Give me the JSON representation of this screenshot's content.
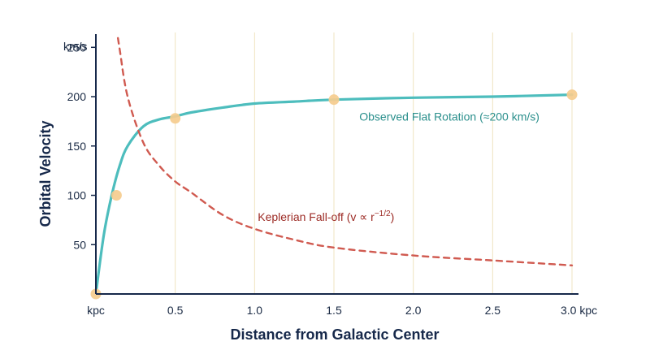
{
  "chart_data": {
    "type": "line",
    "xlabel": "Distance from Galactic Center",
    "ylabel": "Orbital Velocity",
    "xlim": [
      0,
      3.0
    ],
    "ylim": [
      0,
      270
    ],
    "x_ticks": [
      {
        "value": 0,
        "label": "kpc"
      },
      {
        "value": 0.5,
        "label": "0.5"
      },
      {
        "value": 1.0,
        "label": "1.0"
      },
      {
        "value": 1.5,
        "label": "1.5"
      },
      {
        "value": 2.0,
        "label": "2.0"
      },
      {
        "value": 2.5,
        "label": "2.5"
      },
      {
        "value": 3.0,
        "label": "3.0 kpc"
      }
    ],
    "y_ticks": [
      {
        "value": 50,
        "label": "50"
      },
      {
        "value": 100,
        "label": "100"
      },
      {
        "value": 150,
        "label": "150"
      },
      {
        "value": 200,
        "label": "200"
      },
      {
        "value": 250,
        "label": "250"
      }
    ],
    "y_unit_label": "km/s",
    "grid": {
      "vertical": true,
      "horizontal": false
    },
    "series": [
      {
        "name": "Observed Flat Rotation (≈200 km/s)",
        "style": "solid",
        "color": "#4dbdbd",
        "x": [
          0,
          0.05,
          0.1,
          0.15,
          0.2,
          0.3,
          0.4,
          0.5,
          0.6,
          0.8,
          1.0,
          1.25,
          1.5,
          2.0,
          2.5,
          3.0
        ],
        "y": [
          0,
          60,
          100,
          130,
          150,
          170,
          177,
          180,
          184,
          189,
          193,
          195,
          197,
          199,
          200,
          202
        ]
      },
      {
        "name": "Keplerian Fall-off (v ∝ r−1/2)",
        "style": "dashed",
        "color": "#d05a50",
        "x": [
          0.13,
          0.15,
          0.2,
          0.3,
          0.4,
          0.5,
          0.6,
          0.8,
          1.0,
          1.25,
          1.5,
          2.0,
          2.5,
          3.0
        ],
        "y": [
          270,
          248,
          200,
          153,
          130,
          114,
          103,
          80,
          66,
          55,
          47,
          39,
          34,
          29
        ]
      }
    ],
    "markers": {
      "color": "#f5cc8e",
      "points": [
        {
          "x": 0,
          "y": 0
        },
        {
          "x": 0.13,
          "y": 100
        },
        {
          "x": 0.5,
          "y": 178
        },
        {
          "x": 1.5,
          "y": 197
        },
        {
          "x": 3.0,
          "y": 202
        }
      ]
    },
    "annotations": [
      {
        "text": "Observed Flat Rotation (≈200 km/s)",
        "x": 1.66,
        "y": 180,
        "color": "#2a8f8c"
      },
      {
        "text": "Keplerian Fall-off (v ∝ r",
        "sup": "−1/2",
        "suffix": ")",
        "x": 1.02,
        "y": 78,
        "color": "#9c2a24"
      }
    ],
    "colors": {
      "axis": "#16284a",
      "grid": "#efe3c0"
    }
  }
}
